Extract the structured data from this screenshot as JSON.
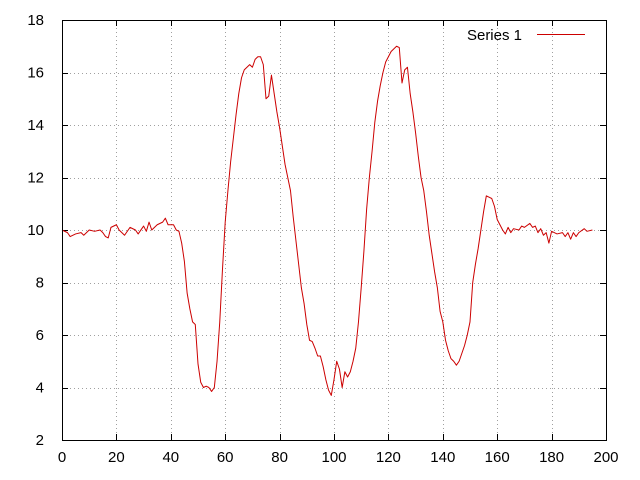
{
  "chart_data": {
    "type": "line",
    "title": "",
    "xlabel": "",
    "ylabel": "",
    "xlim": [
      0,
      200
    ],
    "ylim": [
      2,
      18
    ],
    "x_ticks": [
      0,
      20,
      40,
      60,
      80,
      100,
      120,
      140,
      160,
      180,
      200
    ],
    "y_ticks": [
      2,
      4,
      6,
      8,
      10,
      12,
      14,
      16,
      18
    ],
    "grid": true,
    "legend_position": "top-right",
    "series": [
      {
        "name": "Series 1",
        "color": "#cc0000",
        "points": [
          [
            0,
            10.0
          ],
          [
            2,
            9.9
          ],
          [
            3,
            9.75
          ],
          [
            5,
            9.85
          ],
          [
            7,
            9.9
          ],
          [
            8,
            9.8
          ],
          [
            10,
            10.0
          ],
          [
            12,
            9.95
          ],
          [
            14,
            10.0
          ],
          [
            15,
            9.9
          ],
          [
            16,
            9.75
          ],
          [
            17,
            9.7
          ],
          [
            18,
            10.1
          ],
          [
            20,
            10.2
          ],
          [
            21,
            10.0
          ],
          [
            23,
            9.8
          ],
          [
            25,
            10.1
          ],
          [
            27,
            10.0
          ],
          [
            28,
            9.85
          ],
          [
            30,
            10.15
          ],
          [
            31,
            9.95
          ],
          [
            32,
            10.3
          ],
          [
            33,
            10.0
          ],
          [
            35,
            10.2
          ],
          [
            37,
            10.3
          ],
          [
            38,
            10.45
          ],
          [
            39,
            10.2
          ],
          [
            41,
            10.2
          ],
          [
            42,
            10.0
          ],
          [
            43,
            9.95
          ],
          [
            44,
            9.5
          ],
          [
            45,
            8.8
          ],
          [
            46,
            7.6
          ],
          [
            47,
            7.0
          ],
          [
            48,
            6.5
          ],
          [
            49,
            6.4
          ],
          [
            50,
            4.9
          ],
          [
            51,
            4.2
          ],
          [
            52,
            4.0
          ],
          [
            53,
            4.05
          ],
          [
            54,
            4.0
          ],
          [
            55,
            3.85
          ],
          [
            56,
            4.0
          ],
          [
            57,
            5.0
          ],
          [
            58,
            6.5
          ],
          [
            59,
            8.5
          ],
          [
            60,
            10.3
          ],
          [
            61,
            11.5
          ],
          [
            62,
            12.6
          ],
          [
            63,
            13.5
          ],
          [
            64,
            14.4
          ],
          [
            65,
            15.2
          ],
          [
            66,
            15.8
          ],
          [
            67,
            16.1
          ],
          [
            68,
            16.2
          ],
          [
            69,
            16.3
          ],
          [
            70,
            16.2
          ],
          [
            71,
            16.5
          ],
          [
            72,
            16.6
          ],
          [
            73,
            16.6
          ],
          [
            74,
            16.3
          ],
          [
            75,
            15.0
          ],
          [
            76,
            15.1
          ],
          [
            77,
            15.9
          ],
          [
            78,
            15.2
          ],
          [
            79,
            14.5
          ],
          [
            80,
            13.9
          ],
          [
            81,
            13.2
          ],
          [
            82,
            12.5
          ],
          [
            83,
            12.0
          ],
          [
            84,
            11.5
          ],
          [
            85,
            10.5
          ],
          [
            86,
            9.6
          ],
          [
            87,
            8.7
          ],
          [
            88,
            7.8
          ],
          [
            89,
            7.2
          ],
          [
            90,
            6.4
          ],
          [
            91,
            5.8
          ],
          [
            92,
            5.75
          ],
          [
            93,
            5.5
          ],
          [
            94,
            5.2
          ],
          [
            95,
            5.2
          ],
          [
            96,
            4.8
          ],
          [
            97,
            4.3
          ],
          [
            98,
            3.9
          ],
          [
            99,
            3.7
          ],
          [
            100,
            4.3
          ],
          [
            101,
            5.0
          ],
          [
            102,
            4.7
          ],
          [
            103,
            4.0
          ],
          [
            104,
            4.6
          ],
          [
            105,
            4.4
          ],
          [
            106,
            4.6
          ],
          [
            107,
            5.0
          ],
          [
            108,
            5.5
          ],
          [
            109,
            6.5
          ],
          [
            110,
            7.8
          ],
          [
            111,
            9.2
          ],
          [
            112,
            10.8
          ],
          [
            113,
            12.0
          ],
          [
            114,
            13.0
          ],
          [
            115,
            14.1
          ],
          [
            116,
            14.9
          ],
          [
            117,
            15.5
          ],
          [
            118,
            16.0
          ],
          [
            119,
            16.4
          ],
          [
            120,
            16.6
          ],
          [
            121,
            16.8
          ],
          [
            122,
            16.9
          ],
          [
            123,
            17.0
          ],
          [
            124,
            16.95
          ],
          [
            125,
            15.6
          ],
          [
            126,
            16.1
          ],
          [
            127,
            16.2
          ],
          [
            128,
            15.2
          ],
          [
            129,
            14.5
          ],
          [
            130,
            13.7
          ],
          [
            131,
            12.8
          ],
          [
            132,
            12.0
          ],
          [
            133,
            11.5
          ],
          [
            134,
            10.7
          ],
          [
            135,
            9.8
          ],
          [
            136,
            9.1
          ],
          [
            137,
            8.4
          ],
          [
            138,
            7.8
          ],
          [
            139,
            6.9
          ],
          [
            140,
            6.5
          ],
          [
            141,
            5.8
          ],
          [
            142,
            5.4
          ],
          [
            143,
            5.1
          ],
          [
            144,
            5.0
          ],
          [
            145,
            4.85
          ],
          [
            146,
            5.0
          ],
          [
            147,
            5.3
          ],
          [
            148,
            5.6
          ],
          [
            149,
            6.0
          ],
          [
            150,
            6.5
          ],
          [
            151,
            8.0
          ],
          [
            152,
            8.7
          ],
          [
            153,
            9.3
          ],
          [
            154,
            10.0
          ],
          [
            155,
            10.7
          ],
          [
            156,
            11.3
          ],
          [
            157,
            11.25
          ],
          [
            158,
            11.2
          ],
          [
            159,
            10.9
          ],
          [
            160,
            10.4
          ],
          [
            161,
            10.2
          ],
          [
            162,
            10.0
          ],
          [
            163,
            9.85
          ],
          [
            164,
            10.1
          ],
          [
            165,
            9.9
          ],
          [
            166,
            10.05
          ],
          [
            168,
            10.0
          ],
          [
            169,
            10.15
          ],
          [
            170,
            10.1
          ],
          [
            172,
            10.25
          ],
          [
            173,
            10.1
          ],
          [
            174,
            10.15
          ],
          [
            175,
            9.9
          ],
          [
            176,
            10.05
          ],
          [
            177,
            9.8
          ],
          [
            178,
            9.9
          ],
          [
            179,
            9.5
          ],
          [
            180,
            9.95
          ],
          [
            182,
            9.85
          ],
          [
            184,
            9.9
          ],
          [
            185,
            9.75
          ],
          [
            186,
            9.9
          ],
          [
            187,
            9.65
          ],
          [
            188,
            9.9
          ],
          [
            189,
            9.75
          ],
          [
            190,
            9.9
          ],
          [
            192,
            10.05
          ],
          [
            193,
            9.95
          ],
          [
            195,
            10.0
          ]
        ]
      }
    ]
  }
}
